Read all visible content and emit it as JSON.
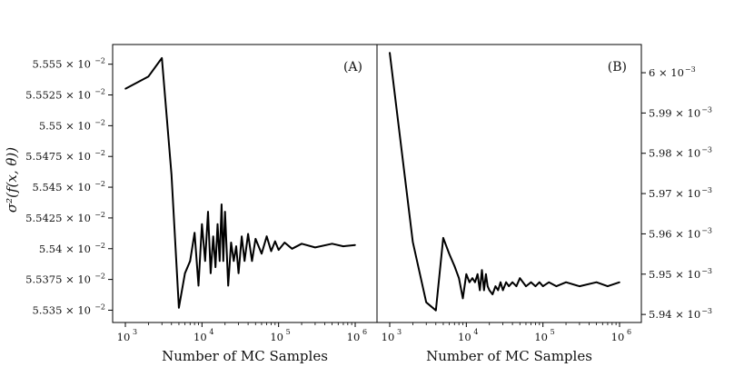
{
  "chart_data": [
    {
      "type": "line",
      "panel_label": "(A)",
      "xlabel": "Number of MC Samples",
      "ylabel": "σ²(f(x, θ))",
      "xscale": "log",
      "xlim": [
        1000,
        1000000
      ],
      "ylim": [
        0.05534,
        0.055566
      ],
      "x_ticks": [
        {
          "base": "10",
          "exp": "3",
          "value": 1000
        },
        {
          "base": "10",
          "exp": "4",
          "value": 10000
        },
        {
          "base": "10",
          "exp": "5",
          "value": 100000
        },
        {
          "base": "10",
          "exp": "6",
          "value": 1000000
        }
      ],
      "y_ticks": [
        {
          "mant": "5.535",
          "value": 0.05535
        },
        {
          "mant": "5.5375",
          "value": 0.055375
        },
        {
          "mant": "5.54",
          "value": 0.0554
        },
        {
          "mant": "5.5425",
          "value": 0.055425
        },
        {
          "mant": "5.545",
          "value": 0.05545
        },
        {
          "mant": "5.5475",
          "value": 0.055475
        },
        {
          "mant": "5.55",
          "value": 0.0555
        },
        {
          "mant": "5.5525",
          "value": 0.055525
        },
        {
          "mant": "5.555",
          "value": 0.05555
        }
      ],
      "y_tick_suffix": {
        "times": "×",
        "base": "10",
        "exp": "−2"
      },
      "x": [
        1000,
        2000,
        3000,
        4000,
        5000,
        6000,
        7000,
        8000,
        9000,
        10000,
        11000,
        12000,
        13000,
        14000,
        15000,
        16000,
        17000,
        18000,
        19000,
        20000,
        22000,
        24000,
        26000,
        28000,
        30000,
        33000,
        36000,
        40000,
        45000,
        50000,
        60000,
        70000,
        80000,
        90000,
        100000,
        120000,
        150000,
        200000,
        300000,
        500000,
        700000,
        1000000
      ],
      "y": [
        0.05553,
        0.05554,
        0.055555,
        0.05546,
        0.055352,
        0.05538,
        0.05539,
        0.055413,
        0.05537,
        0.05542,
        0.05539,
        0.05543,
        0.05538,
        0.05541,
        0.055385,
        0.05542,
        0.05539,
        0.055436,
        0.05539,
        0.05543,
        0.05537,
        0.055405,
        0.05539,
        0.055402,
        0.05538,
        0.05541,
        0.05539,
        0.055412,
        0.05539,
        0.055408,
        0.055396,
        0.05541,
        0.055398,
        0.055406,
        0.055399,
        0.055405,
        0.0554,
        0.055404,
        0.055401,
        0.055404,
        0.055402,
        0.055403
      ]
    },
    {
      "type": "line",
      "panel_label": "(B)",
      "xlabel": "Number of MC Samples",
      "xscale": "log",
      "xlim": [
        1000,
        1000000
      ],
      "ylim": [
        0.005938,
        0.006007
      ],
      "x_ticks": [
        {
          "base": "10",
          "exp": "3",
          "value": 1000
        },
        {
          "base": "10",
          "exp": "4",
          "value": 10000
        },
        {
          "base": "10",
          "exp": "5",
          "value": 100000
        },
        {
          "base": "10",
          "exp": "6",
          "value": 1000000
        }
      ],
      "y_ticks": [
        {
          "mant": "5.94",
          "value": 0.00594
        },
        {
          "mant": "5.95",
          "value": 0.00595
        },
        {
          "mant": "5.96",
          "value": 0.00596
        },
        {
          "mant": "5.97",
          "value": 0.00597
        },
        {
          "mant": "5.98",
          "value": 0.00598
        },
        {
          "mant": "5.99",
          "value": 0.00599
        },
        {
          "mant": "6",
          "value": 0.006
        }
      ],
      "y_tick_suffix": {
        "times": "×",
        "base": "10",
        "exp": "−3"
      },
      "x": [
        1000,
        2000,
        3000,
        4000,
        5000,
        6000,
        7000,
        8000,
        9000,
        10000,
        11000,
        12000,
        13000,
        14000,
        15000,
        16000,
        17000,
        18000,
        19000,
        20000,
        22000,
        24000,
        26000,
        28000,
        30000,
        33000,
        36000,
        40000,
        45000,
        50000,
        60000,
        70000,
        80000,
        90000,
        100000,
        120000,
        150000,
        200000,
        300000,
        500000,
        700000,
        1000000
      ],
      "y": [
        0.006005,
        0.005958,
        0.005943,
        0.005941,
        0.005959,
        0.005955,
        0.005952,
        0.005949,
        0.005944,
        0.00595,
        0.005948,
        0.005949,
        0.005948,
        0.00595,
        0.005946,
        0.005951,
        0.005946,
        0.00595,
        0.005947,
        0.005946,
        0.005945,
        0.005947,
        0.005946,
        0.005948,
        0.005946,
        0.005948,
        0.005947,
        0.005948,
        0.005947,
        0.005949,
        0.005947,
        0.005948,
        0.005947,
        0.005948,
        0.005947,
        0.005948,
        0.005947,
        0.005948,
        0.005947,
        0.005948,
        0.005947,
        0.005948
      ]
    }
  ]
}
